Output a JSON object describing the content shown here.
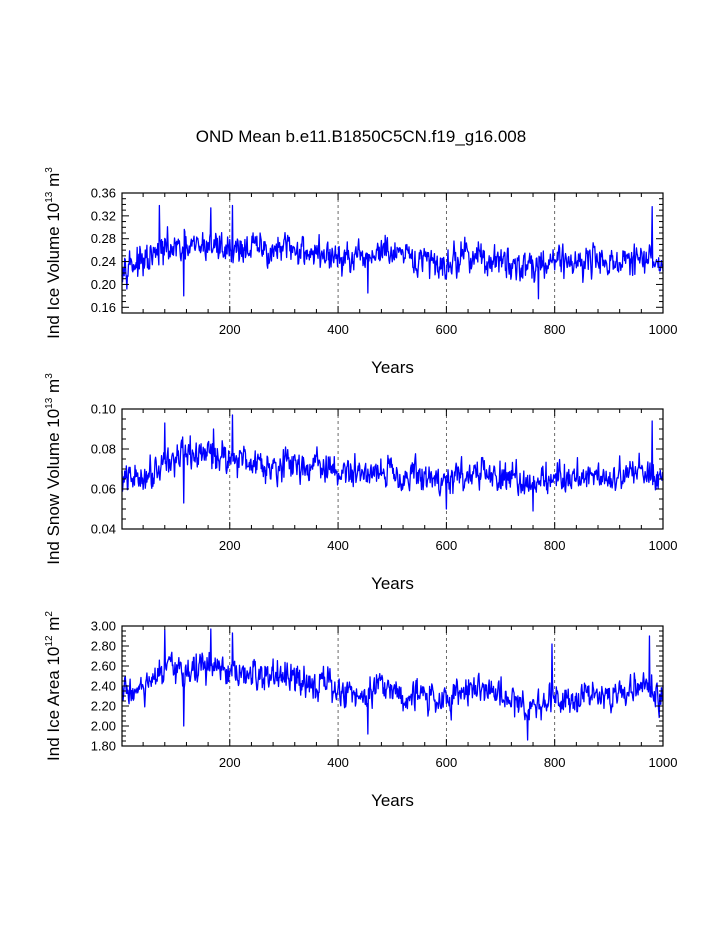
{
  "title": "OND Mean b.e11.B1850C5CN.f19_g16.008",
  "chart_data": [
    {
      "type": "line",
      "ylabel": {
        "prefix": "Ind Ice Volume 10",
        "exp": "13",
        "unit": " m",
        "unit_exp": "3"
      },
      "xlabel": "Years",
      "xlim": [
        1,
        1000
      ],
      "ylim": [
        0.15,
        0.36
      ],
      "xticks": [
        200,
        400,
        600,
        800,
        1000
      ],
      "xtick_labels": [
        "200",
        "400",
        "600",
        "800",
        "1000"
      ],
      "yticks": [
        0.16,
        0.2,
        0.24,
        0.28,
        0.32,
        0.36
      ],
      "ytick_labels": [
        "0.16",
        "0.20",
        "0.24",
        "0.28",
        "0.32",
        "0.36"
      ],
      "ref_lines_x": [
        200,
        400,
        600,
        800
      ],
      "color": "#0000ff",
      "series_summary": "annual OND mean, years 1-1000, fluctuating ~0.18-0.34, mean ~0.25",
      "x_anchor": [
        1,
        40,
        80,
        120,
        160,
        200,
        240,
        280,
        320,
        360,
        400,
        440,
        480,
        520,
        560,
        600,
        640,
        680,
        720,
        760,
        800,
        840,
        880,
        920,
        960,
        1000
      ],
      "y_anchor": [
        0.24,
        0.235,
        0.262,
        0.26,
        0.27,
        0.262,
        0.265,
        0.258,
        0.262,
        0.255,
        0.245,
        0.24,
        0.26,
        0.245,
        0.24,
        0.235,
        0.255,
        0.24,
        0.235,
        0.235,
        0.245,
        0.24,
        0.245,
        0.235,
        0.245,
        0.235
      ],
      "peaks": [
        [
          70,
          0.338
        ],
        [
          165,
          0.334
        ],
        [
          205,
          0.338
        ],
        [
          980,
          0.336
        ],
        [
          115,
          0.18
        ],
        [
          770,
          0.175
        ],
        [
          455,
          0.185
        ]
      ]
    },
    {
      "type": "line",
      "ylabel": {
        "prefix": "Ind Snow Volume 10",
        "exp": "13",
        "unit": " m",
        "unit_exp": "3"
      },
      "xlabel": "Years",
      "xlim": [
        1,
        1000
      ],
      "ylim": [
        0.04,
        0.1
      ],
      "xticks": [
        200,
        400,
        600,
        800,
        1000
      ],
      "xtick_labels": [
        "200",
        "400",
        "600",
        "800",
        "1000"
      ],
      "yticks": [
        0.04,
        0.06,
        0.08,
        0.1
      ],
      "ytick_labels": [
        "0.04",
        "0.06",
        "0.08",
        "0.10"
      ],
      "ref_lines_x": [
        200,
        400,
        600,
        800
      ],
      "color": "#0000ff",
      "series_summary": "annual OND mean, years 1-1000, fluctuating ~0.05-0.095, mean ~0.07",
      "x_anchor": [
        1,
        40,
        80,
        120,
        160,
        200,
        240,
        280,
        320,
        360,
        400,
        440,
        480,
        520,
        560,
        600,
        640,
        680,
        720,
        760,
        800,
        840,
        880,
        920,
        960,
        1000
      ],
      "y_anchor": [
        0.064,
        0.066,
        0.074,
        0.076,
        0.078,
        0.076,
        0.074,
        0.072,
        0.072,
        0.072,
        0.068,
        0.068,
        0.07,
        0.067,
        0.066,
        0.064,
        0.068,
        0.067,
        0.064,
        0.064,
        0.066,
        0.066,
        0.068,
        0.065,
        0.07,
        0.066
      ],
      "peaks": [
        [
          80,
          0.093
        ],
        [
          170,
          0.09
        ],
        [
          205,
          0.097
        ],
        [
          980,
          0.094
        ],
        [
          115,
          0.053
        ],
        [
          760,
          0.049
        ],
        [
          600,
          0.05
        ]
      ]
    },
    {
      "type": "line",
      "ylabel": {
        "prefix": "Ind Ice Area 10",
        "exp": "12",
        "unit": " m",
        "unit_exp": "2"
      },
      "xlabel": "Years",
      "xlim": [
        1,
        1000
      ],
      "ylim": [
        1.8,
        3.0
      ],
      "xticks": [
        200,
        400,
        600,
        800,
        1000
      ],
      "xtick_labels": [
        "200",
        "400",
        "600",
        "800",
        "1000"
      ],
      "yticks": [
        1.8,
        2.0,
        2.2,
        2.4,
        2.6,
        2.8,
        3.0
      ],
      "ytick_labels": [
        "1.80",
        "2.00",
        "2.20",
        "2.40",
        "2.60",
        "2.80",
        "3.00"
      ],
      "ref_lines_x": [
        200,
        400,
        600,
        800
      ],
      "color": "#0000ff",
      "series_summary": "annual OND mean, years 1-1000, fluctuating ~1.85-2.97, mean ~2.4",
      "x_anchor": [
        1,
        40,
        80,
        120,
        160,
        200,
        240,
        280,
        320,
        360,
        400,
        440,
        480,
        520,
        560,
        600,
        640,
        680,
        720,
        760,
        800,
        840,
        880,
        920,
        960,
        1000
      ],
      "y_anchor": [
        2.35,
        2.35,
        2.55,
        2.55,
        2.6,
        2.5,
        2.5,
        2.5,
        2.45,
        2.45,
        2.35,
        2.3,
        2.45,
        2.3,
        2.3,
        2.25,
        2.4,
        2.35,
        2.25,
        2.2,
        2.3,
        2.3,
        2.35,
        2.3,
        2.4,
        2.3
      ],
      "peaks": [
        [
          80,
          2.96
        ],
        [
          165,
          2.97
        ],
        [
          205,
          2.93
        ],
        [
          795,
          2.82
        ],
        [
          975,
          2.9
        ],
        [
          115,
          2.0
        ],
        [
          750,
          1.86
        ],
        [
          455,
          1.92
        ]
      ]
    }
  ]
}
